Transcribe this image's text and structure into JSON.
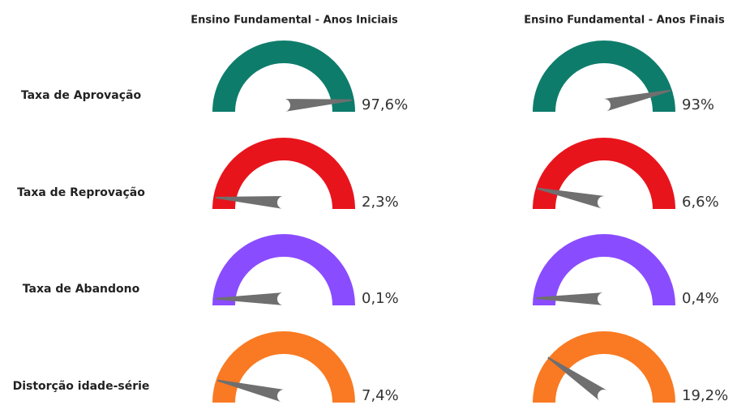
{
  "chart_data": {
    "type": "gauge",
    "columns": [
      "Ensino Fundamental - Anos Iniciais",
      "Ensino Fundamental - Anos Finais"
    ],
    "ylim": [
      0,
      100
    ],
    "series": [
      {
        "name": "Taxa de Aprovação",
        "color": "#0e7c6b",
        "values": [
          97.6,
          93
        ],
        "value_labels": [
          "97,6%",
          "93%"
        ]
      },
      {
        "name": "Taxa de Reprovação",
        "color": "#e8141c",
        "values": [
          2.3,
          6.6
        ],
        "value_labels": [
          "2,3%",
          "6,6%"
        ]
      },
      {
        "name": "Taxa de Abandono",
        "color": "#8a4cff",
        "values": [
          0.1,
          0.4
        ],
        "value_labels": [
          "0,1%",
          "0,4%"
        ]
      },
      {
        "name": "Distorção idade-série",
        "color": "#f97a22",
        "values": [
          7.4,
          19.2
        ],
        "value_labels": [
          "7,4%",
          "19,2%"
        ]
      }
    ]
  }
}
